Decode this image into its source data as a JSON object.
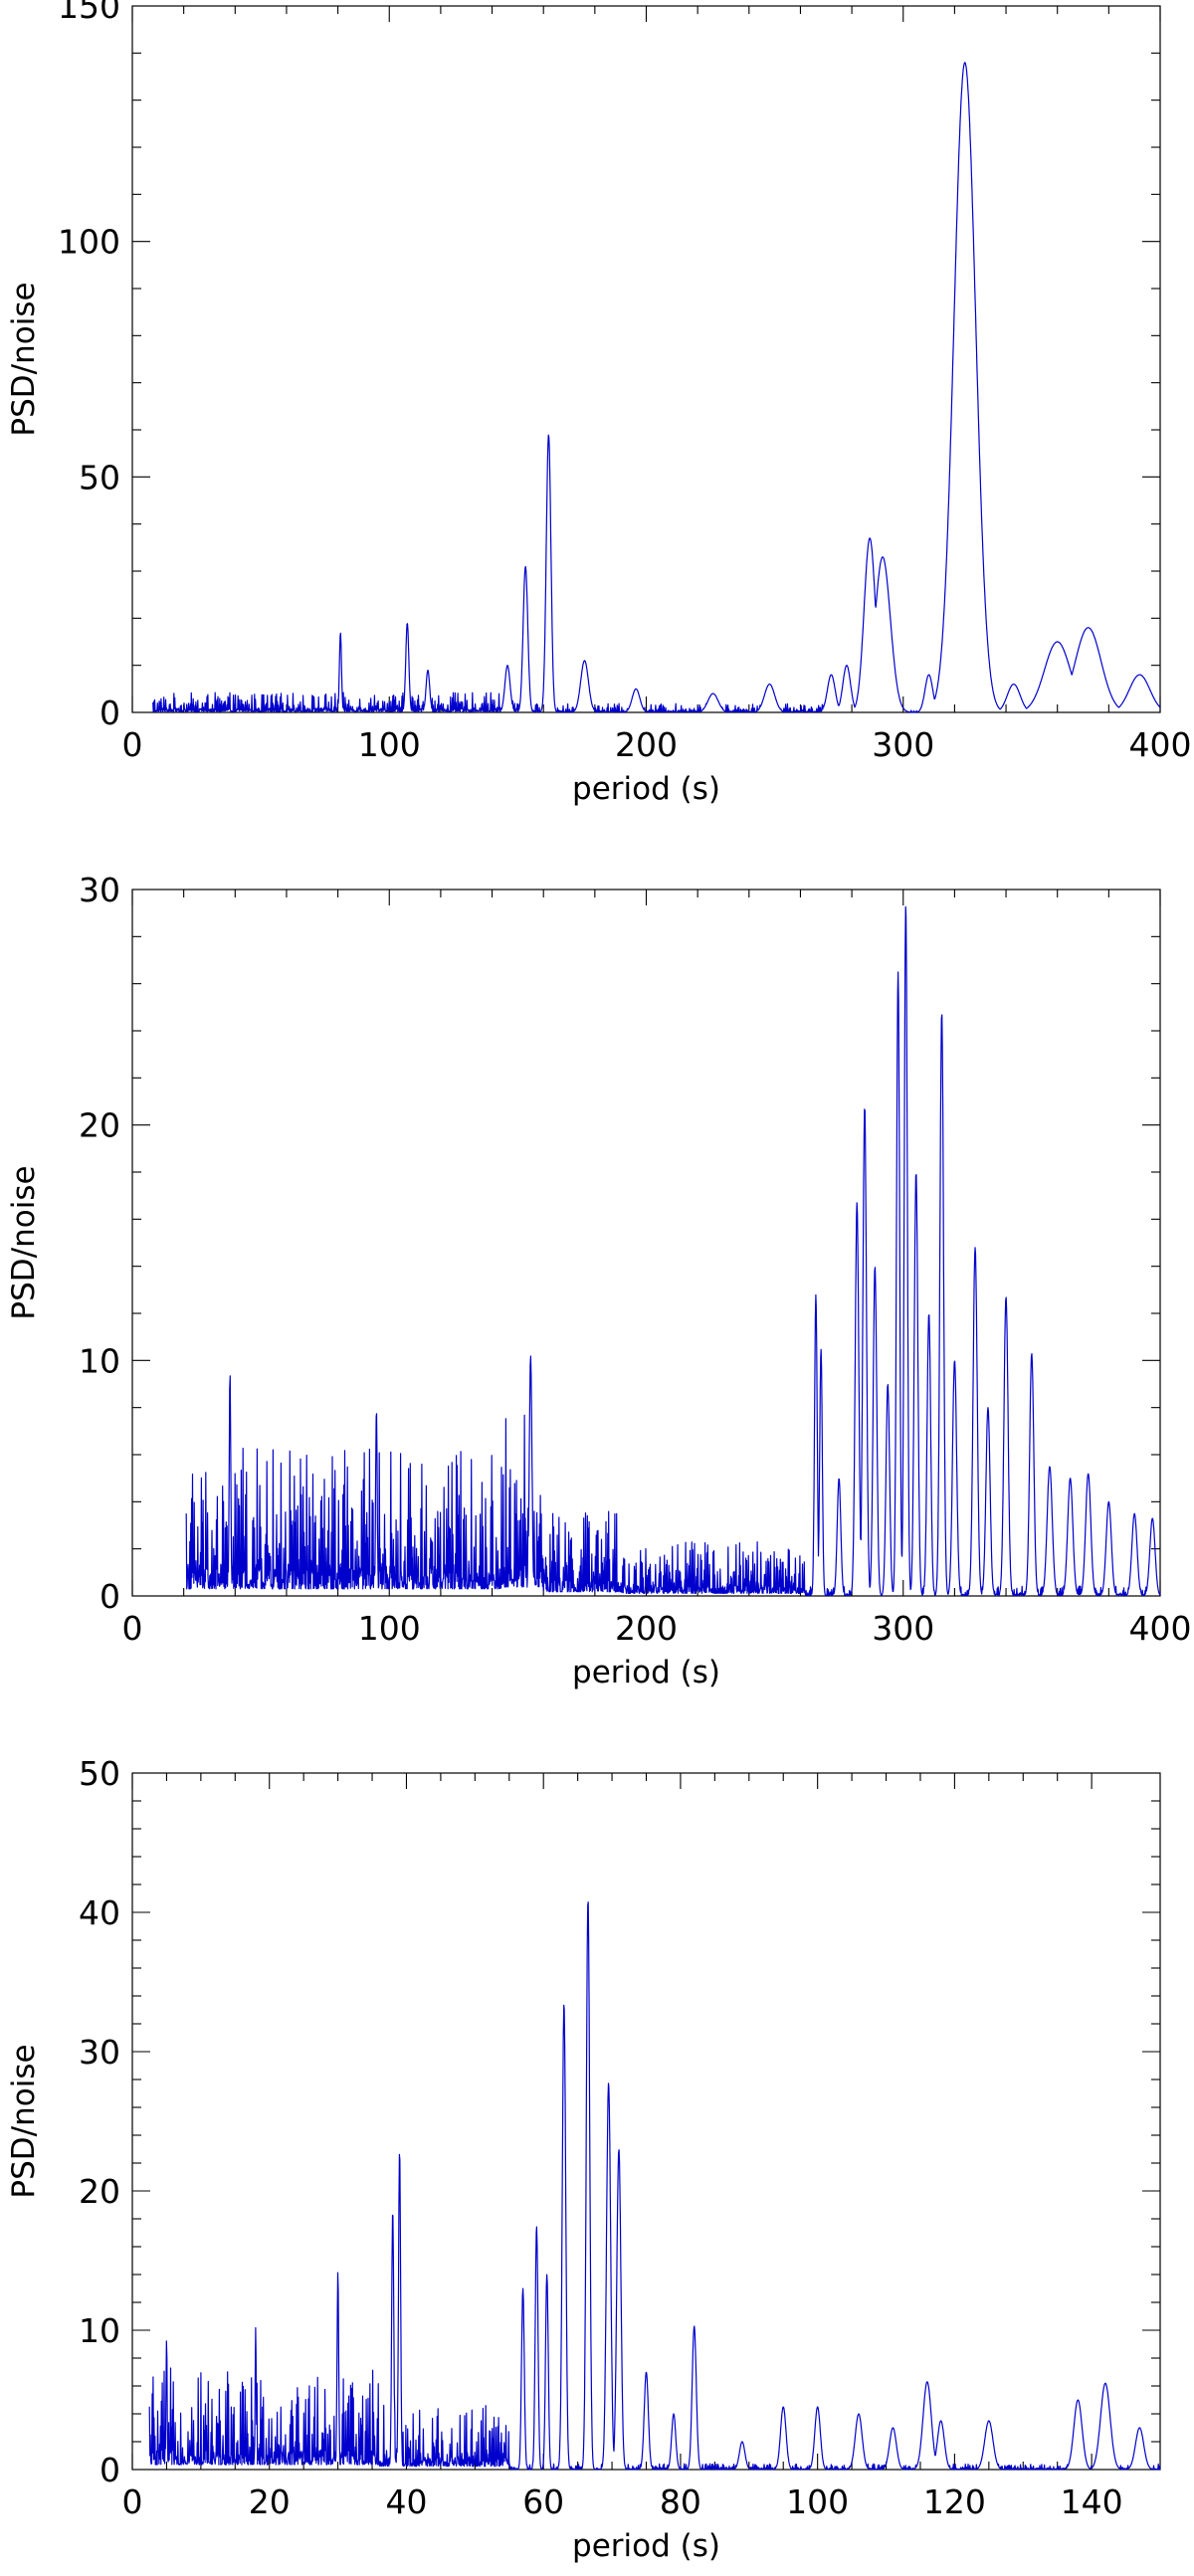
{
  "chart_data": [
    {
      "type": "line",
      "xlabel": "period (s)",
      "ylabel": "PSD/noise",
      "xlim": [
        0,
        400
      ],
      "ylim": [
        0,
        150
      ],
      "xticks": [
        0,
        100,
        200,
        300,
        400
      ],
      "yticks": [
        0,
        50,
        100,
        150
      ],
      "grid": false,
      "series": [
        {
          "color": "#0000cc",
          "min_x": 8,
          "noise_bands": [
            {
              "from": 8,
              "to": 150,
              "level": 4.0
            },
            {
              "from": 150,
              "to": 280,
              "level": 1.8
            }
          ],
          "peaks": [
            {
              "x": 81,
              "y": 17,
              "w": 0.4
            },
            {
              "x": 107,
              "y": 19,
              "w": 0.6
            },
            {
              "x": 115,
              "y": 9,
              "w": 0.7
            },
            {
              "x": 146,
              "y": 10,
              "w": 1.0
            },
            {
              "x": 153,
              "y": 31,
              "w": 0.9
            },
            {
              "x": 162,
              "y": 59,
              "w": 0.9
            },
            {
              "x": 176,
              "y": 11,
              "w": 1.5
            },
            {
              "x": 196,
              "y": 5,
              "w": 1.5
            },
            {
              "x": 226,
              "y": 4,
              "w": 2.0
            },
            {
              "x": 248,
              "y": 6,
              "w": 2.0
            },
            {
              "x": 272,
              "y": 8,
              "w": 1.5
            },
            {
              "x": 278,
              "y": 10,
              "w": 1.5
            },
            {
              "x": 287,
              "y": 37,
              "w": 2.2
            },
            {
              "x": 292,
              "y": 33,
              "w": 3.0
            },
            {
              "x": 310,
              "y": 8,
              "w": 1.5
            },
            {
              "x": 324,
              "y": 138,
              "w": 4.2
            },
            {
              "x": 343,
              "y": 6,
              "w": 2.5
            },
            {
              "x": 360,
              "y": 15,
              "w": 5.0
            },
            {
              "x": 372,
              "y": 18,
              "w": 5.0
            },
            {
              "x": 392,
              "y": 8,
              "w": 4.0
            }
          ]
        }
      ]
    },
    {
      "type": "line",
      "xlabel": "period (s)",
      "ylabel": "PSD/noise",
      "xlim": [
        0,
        400
      ],
      "ylim": [
        0,
        30
      ],
      "xticks": [
        0,
        100,
        200,
        300,
        400
      ],
      "yticks": [
        0,
        10,
        20,
        30
      ],
      "grid": false,
      "series": [
        {
          "color": "#0000cc",
          "min_x": 21,
          "noise_bands": [
            {
              "from": 21,
              "to": 145,
              "level": 6.0
            },
            {
              "from": 145,
              "to": 160,
              "level": 7.5
            },
            {
              "from": 160,
              "to": 190,
              "level": 3.5
            },
            {
              "from": 190,
              "to": 262,
              "level": 2.2
            }
          ],
          "peaks": [
            {
              "x": 38,
              "y": 9.5,
              "w": 0.3
            },
            {
              "x": 95,
              "y": 8.0,
              "w": 0.3
            },
            {
              "x": 155,
              "y": 10.2,
              "w": 0.5
            },
            {
              "x": 266,
              "y": 12.8,
              "w": 0.5
            },
            {
              "x": 268,
              "y": 10.5,
              "w": 0.5
            },
            {
              "x": 275,
              "y": 5.0,
              "w": 0.7
            },
            {
              "x": 282,
              "y": 16.7,
              "w": 0.7
            },
            {
              "x": 285,
              "y": 20.8,
              "w": 0.7
            },
            {
              "x": 289,
              "y": 14.0,
              "w": 0.7
            },
            {
              "x": 294,
              "y": 9.0,
              "w": 0.7
            },
            {
              "x": 298,
              "y": 26.5,
              "w": 0.6
            },
            {
              "x": 301,
              "y": 29.4,
              "w": 0.6
            },
            {
              "x": 305,
              "y": 18.0,
              "w": 0.7
            },
            {
              "x": 310,
              "y": 12.0,
              "w": 0.7
            },
            {
              "x": 315,
              "y": 24.8,
              "w": 0.7
            },
            {
              "x": 320,
              "y": 10.0,
              "w": 0.8
            },
            {
              "x": 328,
              "y": 14.8,
              "w": 0.8
            },
            {
              "x": 333,
              "y": 8.0,
              "w": 0.8
            },
            {
              "x": 340,
              "y": 12.7,
              "w": 0.8
            },
            {
              "x": 350,
              "y": 10.3,
              "w": 0.8
            },
            {
              "x": 357,
              "y": 5.5,
              "w": 1.0
            },
            {
              "x": 365,
              "y": 5.0,
              "w": 1.0
            },
            {
              "x": 372,
              "y": 5.2,
              "w": 1.0
            },
            {
              "x": 380,
              "y": 4.0,
              "w": 1.0
            },
            {
              "x": 390,
              "y": 3.5,
              "w": 1.0
            },
            {
              "x": 397,
              "y": 3.3,
              "w": 1.0
            }
          ]
        }
      ]
    },
    {
      "type": "line",
      "xlabel": "period (s)",
      "ylabel": "PSD/noise",
      "xlim": [
        0,
        150
      ],
      "ylim": [
        0,
        50
      ],
      "xticks": [
        0,
        20,
        40,
        60,
        80,
        100,
        120,
        140
      ],
      "yticks": [
        0,
        10,
        20,
        30,
        40,
        50
      ],
      "grid": false,
      "series": [
        {
          "color": "#0000cc",
          "min_x": 2.5,
          "noise_bands": [
            {
              "from": 2.5,
              "to": 36,
              "level": 7.0
            },
            {
              "from": 36,
              "to": 55,
              "level": 4.5
            }
          ],
          "peaks": [
            {
              "x": 5,
              "y": 9.5,
              "w": 0.08
            },
            {
              "x": 18,
              "y": 10.3,
              "w": 0.08
            },
            {
              "x": 30,
              "y": 14.2,
              "w": 0.12
            },
            {
              "x": 38,
              "y": 18.7,
              "w": 0.15
            },
            {
              "x": 39,
              "y": 23.0,
              "w": 0.15
            },
            {
              "x": 57,
              "y": 13.0,
              "w": 0.2
            },
            {
              "x": 59,
              "y": 17.5,
              "w": 0.2
            },
            {
              "x": 60.5,
              "y": 14.0,
              "w": 0.2
            },
            {
              "x": 63,
              "y": 33.5,
              "w": 0.25
            },
            {
              "x": 66.5,
              "y": 41.0,
              "w": 0.25
            },
            {
              "x": 69.5,
              "y": 27.8,
              "w": 0.3
            },
            {
              "x": 71,
              "y": 23.0,
              "w": 0.3
            },
            {
              "x": 75,
              "y": 7.0,
              "w": 0.3
            },
            {
              "x": 79,
              "y": 4.0,
              "w": 0.3
            },
            {
              "x": 82,
              "y": 10.3,
              "w": 0.3
            },
            {
              "x": 89,
              "y": 2.0,
              "w": 0.4
            },
            {
              "x": 95,
              "y": 4.5,
              "w": 0.4
            },
            {
              "x": 100,
              "y": 4.5,
              "w": 0.4
            },
            {
              "x": 106,
              "y": 4.0,
              "w": 0.5
            },
            {
              "x": 111,
              "y": 3.0,
              "w": 0.5
            },
            {
              "x": 116,
              "y": 6.3,
              "w": 0.6
            },
            {
              "x": 118,
              "y": 3.5,
              "w": 0.5
            },
            {
              "x": 125,
              "y": 3.5,
              "w": 0.6
            },
            {
              "x": 138,
              "y": 5.0,
              "w": 0.6
            },
            {
              "x": 142,
              "y": 6.2,
              "w": 0.7
            },
            {
              "x": 147,
              "y": 3.0,
              "w": 0.6
            }
          ]
        }
      ]
    }
  ]
}
